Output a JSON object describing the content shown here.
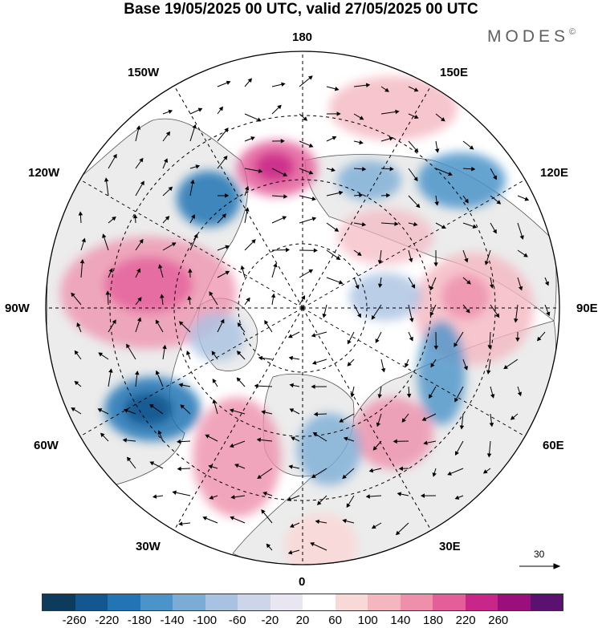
{
  "title": "Base 19/05/2025 00 UTC, valid 27/05/2025 00 UTC",
  "brand": "MODES",
  "brand_mark": "©",
  "longitude_labels": {
    "n180": "180",
    "w150": "150W",
    "e150": "150E",
    "w120": "120W",
    "e120": "120E",
    "w90": "90W",
    "e90": "90E",
    "w60": "60W",
    "e60": "60E",
    "w30": "30W",
    "e30": "30E",
    "s0": "0"
  },
  "reference_vector": {
    "label": "30"
  },
  "colorbar": {
    "colors": [
      "#0d3b5e",
      "#14568f",
      "#2274b4",
      "#4b94c9",
      "#7aacd6",
      "#a9c2e2",
      "#cdd5ea",
      "#eae6f1",
      "#ffffff",
      "#f9d8d8",
      "#f4b7c0",
      "#ee8fab",
      "#e45e9a",
      "#c9268a",
      "#9a0f7b",
      "#5b1170"
    ],
    "ticks": [
      "-260",
      "-220",
      "-180",
      "-140",
      "-100",
      "-60",
      "-20",
      "20",
      "60",
      "100",
      "140",
      "180",
      "220",
      "260"
    ]
  },
  "colors": {
    "land": "#ececec",
    "ocean": "#ffffff",
    "grid": "#000000"
  }
}
